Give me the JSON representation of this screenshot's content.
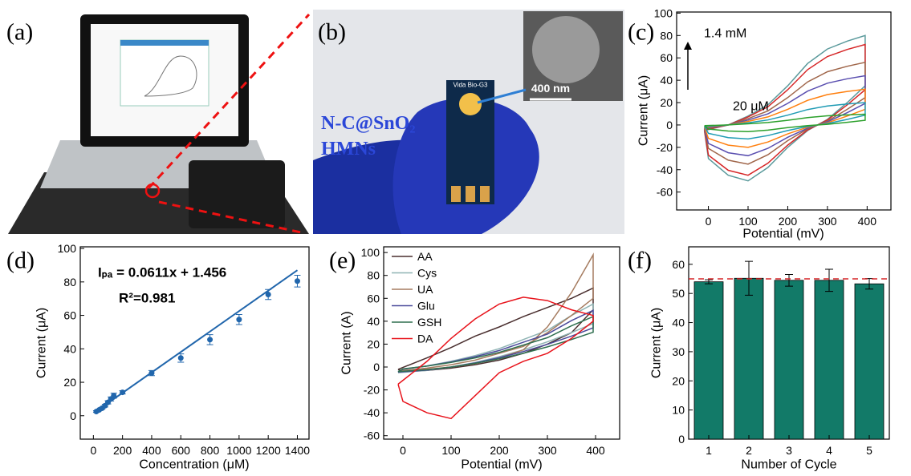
{
  "figure": {
    "panel_labels": [
      "(a)",
      "(b)",
      "(c)",
      "(d)",
      "(e)",
      "(f)"
    ],
    "photo_b": {
      "material_line1": "N-C@SnO₂",
      "material_line2": "HMNs",
      "scale_bar": "400 nm",
      "device": "Vida Bio-G3"
    }
  },
  "chart_data": [
    {
      "type": "line",
      "xlabel": "Potential (mV)",
      "ylabel": "Current (μA)",
      "annotations": [
        "1.4 mM",
        "20 μM"
      ],
      "xlim": [
        -80,
        460
      ],
      "xticks": [
        0,
        100,
        200,
        300,
        400
      ],
      "ylim": [
        -76,
        101
      ],
      "yticks": [
        -60,
        -40,
        -20,
        0,
        20,
        40,
        60,
        80,
        100
      ],
      "x": [
        -10,
        50,
        100,
        150,
        200,
        250,
        300,
        350,
        395,
        395,
        350,
        300,
        250,
        200,
        150,
        100,
        50,
        0,
        -10
      ],
      "series": [
        {
          "color": "#5b9a9c",
          "values": [
            -5,
            0,
            8,
            18,
            35,
            55,
            68,
            75,
            80,
            35,
            20,
            5,
            -5,
            -20,
            -38,
            -50,
            -45,
            -30,
            -5
          ]
        },
        {
          "color": "#d62728",
          "values": [
            -4.5,
            0,
            7.2,
            16.2,
            31.5,
            49.5,
            61.2,
            67.5,
            72,
            31.5,
            18,
            4.5,
            -4.5,
            -18,
            -34.2,
            -45,
            -40.5,
            -27,
            -4.5
          ]
        },
        {
          "color": "#a0664a",
          "values": [
            -3.5,
            0,
            5.6,
            12.6,
            24.5,
            38.5,
            47.6,
            52.5,
            56,
            24.5,
            14,
            3.5,
            -3.5,
            -14,
            -26.6,
            -35,
            -31.5,
            -21,
            -3.5
          ]
        },
        {
          "color": "#5a4fb0",
          "values": [
            -2.8,
            0,
            4.4,
            9.9,
            19.3,
            30.3,
            37.4,
            41.3,
            44,
            19.3,
            11,
            2.8,
            -2.8,
            -11,
            -20.9,
            -27.5,
            -24.8,
            -16.5,
            -2.8
          ]
        },
        {
          "color": "#ff7f0e",
          "values": [
            -2,
            0,
            3.2,
            7.2,
            14,
            22,
            27.2,
            30,
            32,
            14,
            8,
            2,
            -2,
            -8,
            -15.2,
            -20,
            -18,
            -12,
            -2
          ]
        },
        {
          "color": "#1f9bb4",
          "values": [
            -1.3,
            0,
            2,
            4.5,
            8.8,
            13.8,
            17,
            18.8,
            20,
            8.8,
            5,
            1.3,
            -1.3,
            -5,
            -9.5,
            -12.5,
            -11.3,
            -7.5,
            -1.3
          ]
        },
        {
          "color": "#2ca02c",
          "values": [
            -0.6,
            0,
            1,
            2.2,
            4.2,
            6.6,
            8.2,
            9,
            9.6,
            4.2,
            2.4,
            0.6,
            -0.6,
            -2.4,
            -4.6,
            -6,
            -5.4,
            -3.6,
            -0.6
          ]
        }
      ]
    },
    {
      "type": "scatter",
      "xlabel": "Concentration (μM)",
      "ylabel": "Current (μA)",
      "annotations": [
        "Iₚₐ = 0.0611x + 1.456",
        "R²=0.981"
      ],
      "xlim": [
        -90,
        1480
      ],
      "xticks": [
        0,
        200,
        400,
        600,
        800,
        1000,
        1200,
        1400
      ],
      "ylim": [
        -14,
        101
      ],
      "yticks": [
        0,
        20,
        40,
        60,
        80,
        100
      ],
      "color": "#2166ac",
      "x": [
        20,
        40,
        60,
        80,
        100,
        120,
        140,
        200,
        400,
        600,
        800,
        1000,
        1200,
        1400
      ],
      "values": [
        2.5,
        3.5,
        4.5,
        6,
        8,
        10,
        12,
        14,
        25.5,
        34.5,
        45.5,
        57.5,
        72.5,
        80.5
      ],
      "errors": [
        0.5,
        0.5,
        0.6,
        0.8,
        1,
        1.2,
        1.5,
        1,
        1.5,
        2.5,
        3,
        3,
        3,
        3.5
      ],
      "fit": {
        "x": [
          20,
          1400
        ],
        "values": [
          2.678,
          86.996
        ]
      }
    },
    {
      "type": "line",
      "xlabel": "Potential (mV)",
      "ylabel": "Current (A)",
      "xlim": [
        -40,
        450
      ],
      "xticks": [
        0,
        100,
        200,
        300,
        400
      ],
      "ylim": [
        -63,
        105
      ],
      "yticks": [
        -60,
        -40,
        -20,
        0,
        20,
        40,
        60,
        80,
        100
      ],
      "x": [
        -10,
        50,
        100,
        150,
        200,
        250,
        300,
        350,
        395,
        395,
        350,
        300,
        250,
        200,
        150,
        100,
        50,
        0,
        -10
      ],
      "series": [
        {
          "name": "AA",
          "color": "#4a2f2f",
          "values": [
            -2,
            8,
            17,
            27,
            35,
            44,
            52,
            60,
            69,
            50,
            30,
            20,
            12,
            6,
            2,
            -1,
            -3,
            -4,
            -2
          ]
        },
        {
          "name": "Cys",
          "color": "#8fb4b4",
          "values": [
            -5,
            -3,
            0,
            4,
            9,
            15,
            22,
            30,
            38,
            55,
            45,
            32,
            24,
            16,
            10,
            5,
            1,
            -2,
            -5
          ]
        },
        {
          "name": "UA",
          "color": "#a67c60",
          "values": [
            -4,
            -2,
            0,
            3,
            8,
            15,
            35,
            65,
            98,
            60,
            45,
            30,
            18,
            12,
            6,
            2,
            -1,
            -3,
            -4
          ]
        },
        {
          "name": "Glu",
          "color": "#4a4a9a",
          "values": [
            -4.5,
            -2.7,
            0,
            3.6,
            8.1,
            13.5,
            19.8,
            27,
            34.2,
            49.5,
            40.5,
            28.8,
            21.6,
            14.4,
            9,
            4.5,
            0.9,
            -1.8,
            -4.5
          ]
        },
        {
          "name": "GSH",
          "color": "#2f6f4f",
          "values": [
            -4,
            -2.4,
            0,
            3.2,
            7.2,
            12,
            17.6,
            24,
            30.4,
            44,
            36,
            25.6,
            19.2,
            12.8,
            8,
            4,
            0.8,
            -1.6,
            -4
          ]
        },
        {
          "name": "DA",
          "color": "#e8141c",
          "values": [
            -15,
            5,
            25,
            42,
            55,
            61,
            58,
            50,
            45,
            40,
            25,
            12,
            5,
            -5,
            -25,
            -45,
            -40,
            -30,
            -15
          ]
        }
      ]
    },
    {
      "type": "bar",
      "xlabel": "Number of Cycle",
      "ylabel": "Current (μA)",
      "categories": [
        "1",
        "2",
        "3",
        "4",
        "5"
      ],
      "values": [
        54,
        55.2,
        54.5,
        54.5,
        53.3
      ],
      "errors": [
        0.7,
        5.8,
        2,
        3.8,
        1.8
      ],
      "color": "#127a68",
      "reference_line": 55,
      "reference_color": "#d62728",
      "ylim": [
        0,
        66
      ],
      "yticks": [
        0,
        10,
        20,
        30,
        40,
        50,
        60
      ]
    }
  ]
}
